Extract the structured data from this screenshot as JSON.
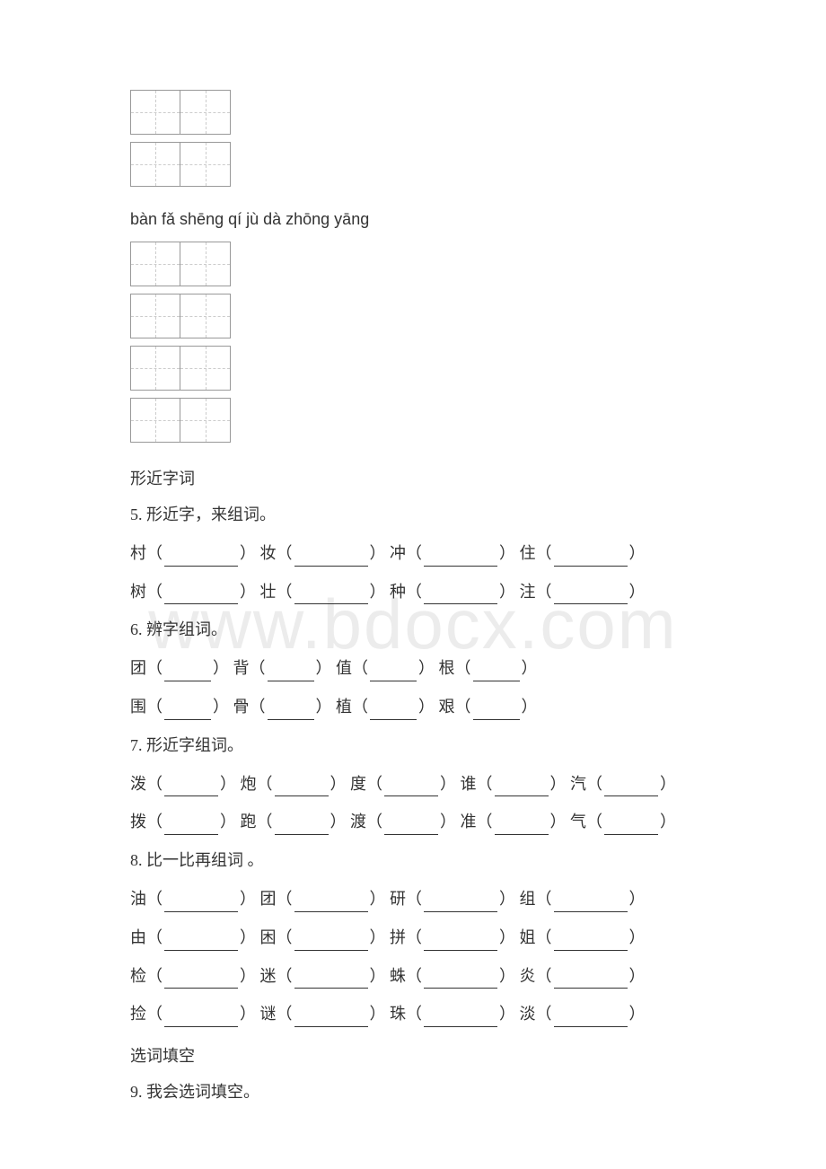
{
  "pinyin_line": "bàn fǎ shēng qí jù dà zhōng yāng",
  "heading_xingjinzi": "形近字词",
  "heading_xuancitiankong": "选词填空",
  "ex5": {
    "title": "5. 形近字，来组词。",
    "row1": [
      {
        "char": "村",
        "ulClass": "long"
      },
      {
        "char": "妆",
        "ulClass": "long"
      },
      {
        "char": "冲",
        "ulClass": "long"
      },
      {
        "char": "住",
        "ulClass": "long"
      }
    ],
    "row2": [
      {
        "char": "树",
        "ulClass": "long"
      },
      {
        "char": "壮",
        "ulClass": "long"
      },
      {
        "char": "种",
        "ulClass": "long"
      },
      {
        "char": "注",
        "ulClass": "long"
      }
    ]
  },
  "ex6": {
    "title": "6. 辨字组词。",
    "row1": [
      {
        "char": "团",
        "ulClass": "short"
      },
      {
        "char": "背",
        "ulClass": "short"
      },
      {
        "char": "值",
        "ulClass": "short"
      },
      {
        "char": "根",
        "ulClass": "short"
      }
    ],
    "row2": [
      {
        "char": "围",
        "ulClass": "short"
      },
      {
        "char": "骨",
        "ulClass": "short"
      },
      {
        "char": "植",
        "ulClass": "short"
      },
      {
        "char": "艰",
        "ulClass": "short"
      }
    ]
  },
  "ex7": {
    "title": "7. 形近字组词。",
    "row1": [
      {
        "char": "泼",
        "ulClass": "med"
      },
      {
        "char": "炮",
        "ulClass": "med"
      },
      {
        "char": "度",
        "ulClass": "med"
      },
      {
        "char": "谁",
        "ulClass": "med"
      },
      {
        "char": "汽",
        "ulClass": "med"
      }
    ],
    "row2": [
      {
        "char": "拨",
        "ulClass": "med"
      },
      {
        "char": "跑",
        "ulClass": "med"
      },
      {
        "char": "渡",
        "ulClass": "med"
      },
      {
        "char": "准",
        "ulClass": "med"
      },
      {
        "char": "气",
        "ulClass": "med"
      }
    ]
  },
  "ex8": {
    "title": "8. 比一比再组词 。",
    "row1": [
      {
        "char": "油",
        "ulClass": "long"
      },
      {
        "char": "团",
        "ulClass": "long"
      },
      {
        "char": "研",
        "ulClass": "long"
      },
      {
        "char": "组",
        "ulClass": "long"
      }
    ],
    "row2": [
      {
        "char": "由",
        "ulClass": "long"
      },
      {
        "char": "困",
        "ulClass": "long"
      },
      {
        "char": "拼",
        "ulClass": "long"
      },
      {
        "char": "姐",
        "ulClass": "long"
      }
    ],
    "row3": [
      {
        "char": "检",
        "ulClass": "long"
      },
      {
        "char": "迷",
        "ulClass": "long"
      },
      {
        "char": "蛛",
        "ulClass": "long"
      },
      {
        "char": "炎",
        "ulClass": "long"
      }
    ],
    "row4": [
      {
        "char": "捡",
        "ulClass": "long"
      },
      {
        "char": "谜",
        "ulClass": "long"
      },
      {
        "char": "珠",
        "ulClass": "long"
      },
      {
        "char": "淡",
        "ulClass": "long"
      }
    ]
  },
  "ex9": {
    "title": "9. 我会选词填空。"
  },
  "watermark": "www.bdocx.com"
}
